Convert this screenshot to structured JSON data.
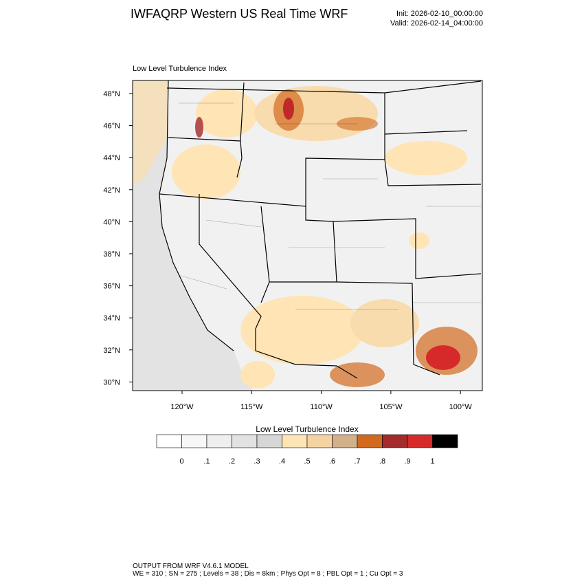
{
  "header": {
    "title": "IWFAQRP Western US Real Time WRF",
    "init": "Init: 2026-02-10_00:00:00",
    "valid": "Valid: 2026-02-14_04:00:00"
  },
  "map": {
    "subtitle": "Low Level Turbulence Index",
    "lat_labels": [
      "48°N",
      "46°N",
      "44°N",
      "42°N",
      "40°N",
      "38°N",
      "36°N",
      "34°N",
      "32°N",
      "30°N"
    ],
    "lon_labels": [
      "120°W",
      "115°W",
      "110°W",
      "105°W",
      "100°W"
    ]
  },
  "colorbar": {
    "title": "Low Level Turbulence Index",
    "colors": [
      "#ffffff",
      "#f7f7f7",
      "#efefef",
      "#e2e2e2",
      "#d6d6d6",
      "#ffe4b5",
      "#f5d3a0",
      "#d2b08a",
      "#d2691e",
      "#a52a2a",
      "#d62a2a",
      "#000000"
    ],
    "labels": [
      "0",
      ".1",
      ".2",
      ".3",
      ".4",
      ".5",
      ".6",
      ".7",
      ".8",
      ".9",
      "1"
    ]
  },
  "footer": {
    "line1": "OUTPUT FROM WRF V4.6.1 MODEL",
    "line2": "WE = 310 ; SN = 275 ; Levels = 38 ; Dis = 8km ; Phys Opt = 8 ; PBL Opt = 1 ; Cu Opt = 3"
  }
}
